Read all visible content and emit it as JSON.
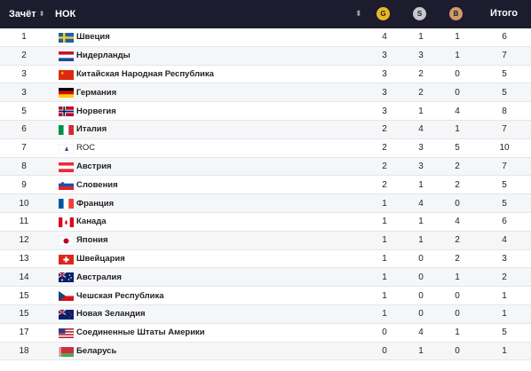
{
  "header": {
    "rank_label": "Зачёт",
    "noc_label": "НОК",
    "gold_label": "G",
    "silver_label": "S",
    "bronze_label": "B",
    "total_label": "Итого",
    "colors": {
      "gold": "#e8b923",
      "silver": "#c7c7cc",
      "bronze": "#d19a6a",
      "header_bg": "#1c1c2e"
    }
  },
  "rows": [
    {
      "rank": "1",
      "name": "Швеция",
      "flag": "se-flag",
      "gold": "4",
      "silver": "1",
      "bronze": "1",
      "total": "6"
    },
    {
      "rank": "2",
      "name": "Нидерланды",
      "flag": "nl-flag",
      "gold": "3",
      "silver": "3",
      "bronze": "1",
      "total": "7"
    },
    {
      "rank": "3",
      "name": "Китайская Народная Республика",
      "flag": "cn-flag",
      "gold": "3",
      "silver": "2",
      "bronze": "0",
      "total": "5"
    },
    {
      "rank": "3",
      "name": "Германия",
      "flag": "de-flag",
      "gold": "3",
      "silver": "2",
      "bronze": "0",
      "total": "5"
    },
    {
      "rank": "5",
      "name": "Норвегия",
      "flag": "no-flag",
      "gold": "3",
      "silver": "1",
      "bronze": "4",
      "total": "8"
    },
    {
      "rank": "6",
      "name": "Италия",
      "flag": "it-flag",
      "gold": "2",
      "silver": "4",
      "bronze": "1",
      "total": "7"
    },
    {
      "rank": "7",
      "name": "ROC",
      "flag": "roc-flag",
      "gold": "2",
      "silver": "3",
      "bronze": "5",
      "total": "10"
    },
    {
      "rank": "8",
      "name": "Австрия",
      "flag": "at-flag",
      "gold": "2",
      "silver": "3",
      "bronze": "2",
      "total": "7"
    },
    {
      "rank": "9",
      "name": "Словения",
      "flag": "si-flag",
      "gold": "2",
      "silver": "1",
      "bronze": "2",
      "total": "5"
    },
    {
      "rank": "10",
      "name": "Франция",
      "flag": "fr-flag",
      "gold": "1",
      "silver": "4",
      "bronze": "0",
      "total": "5"
    },
    {
      "rank": "11",
      "name": "Канада",
      "flag": "ca-flag",
      "gold": "1",
      "silver": "1",
      "bronze": "4",
      "total": "6"
    },
    {
      "rank": "12",
      "name": "Япония",
      "flag": "jp-flag",
      "gold": "1",
      "silver": "1",
      "bronze": "2",
      "total": "4"
    },
    {
      "rank": "13",
      "name": "Швейцария",
      "flag": "ch-flag",
      "gold": "1",
      "silver": "0",
      "bronze": "2",
      "total": "3"
    },
    {
      "rank": "14",
      "name": "Австралия",
      "flag": "au-flag",
      "gold": "1",
      "silver": "0",
      "bronze": "1",
      "total": "2"
    },
    {
      "rank": "15",
      "name": "Чешская Республика",
      "flag": "cz-flag",
      "gold": "1",
      "silver": "0",
      "bronze": "0",
      "total": "1"
    },
    {
      "rank": "15",
      "name": "Новая Зеландия",
      "flag": "nz-flag",
      "gold": "1",
      "silver": "0",
      "bronze": "0",
      "total": "1"
    },
    {
      "rank": "17",
      "name": "Соединенные Штаты Америки",
      "flag": "us-flag",
      "gold": "0",
      "silver": "4",
      "bronze": "1",
      "total": "5"
    },
    {
      "rank": "18",
      "name": "Беларусь",
      "flag": "by-flag",
      "gold": "0",
      "silver": "1",
      "bronze": "0",
      "total": "1"
    }
  ]
}
